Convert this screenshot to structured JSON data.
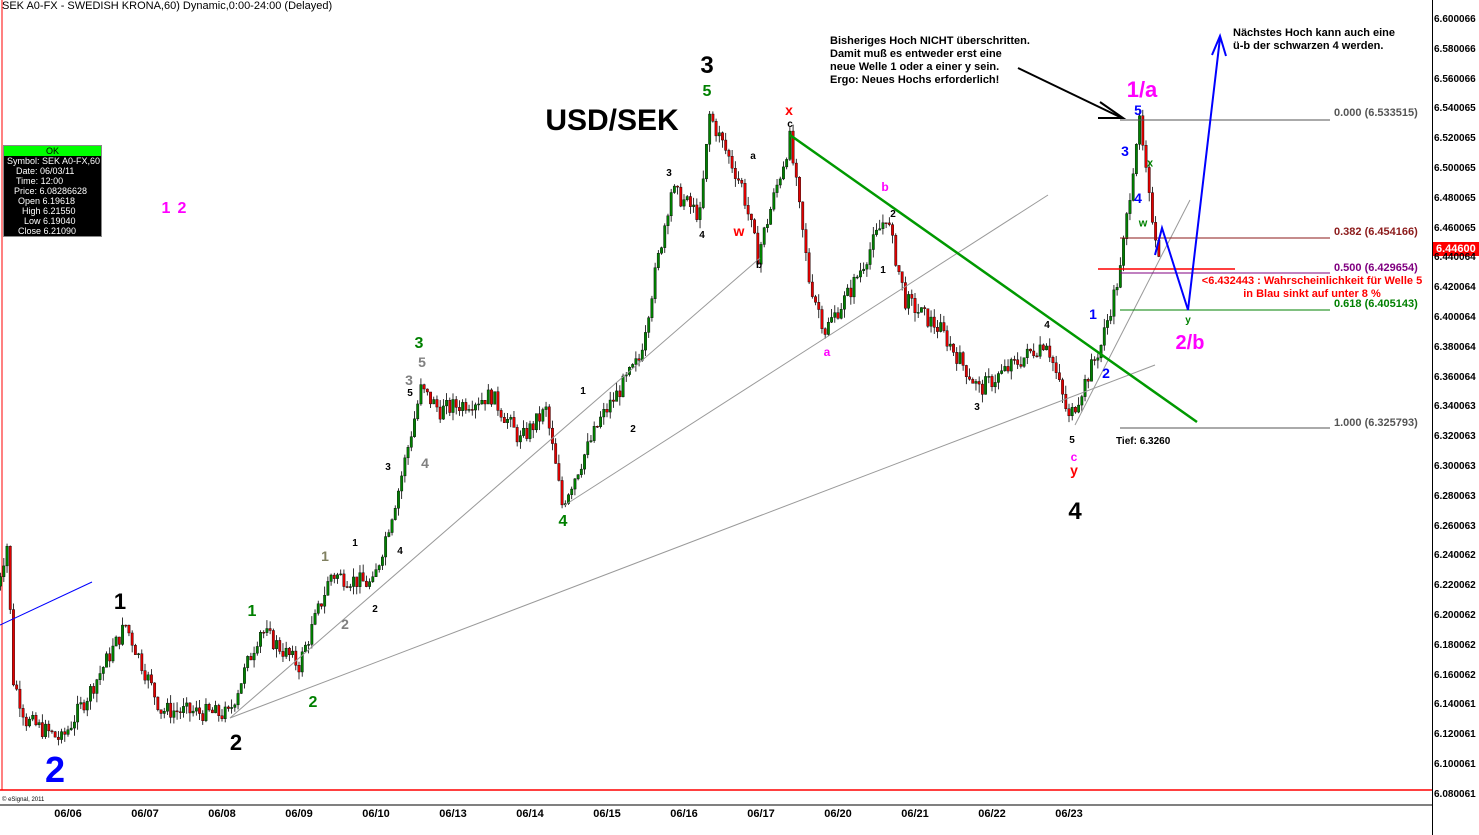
{
  "window_title": "SEK A0-FX - SWEDISH KRONA,60) Dynamic,0:00-24:00 (Delayed)",
  "copyright": "© eSignal, 2011",
  "current_price": "6.44600",
  "info_box": {
    "status": "OK",
    "rows": [
      "Symbol: SEK A0-FX,60",
      "Date: 06/03/11",
      "Time: 12:00",
      "Price: 6.08286628",
      "Open  6.19618",
      "High  6.21550",
      "Low  6.19040",
      "Close  6.21090"
    ]
  },
  "notes": {
    "top_center": [
      "Bisheriges Hoch NICHT überschritten.",
      "Damit muß es entweder erst eine",
      "neue Welle 1 oder a einer y sein.",
      "Ergo: Neues Hochs erforderlich!"
    ],
    "top_right": [
      "Nächstes Hoch kann auch eine",
      "ü-b der schwarzen 4 werden."
    ],
    "red_note": [
      "<6.432443 : Wahrscheinlichkeit für Welle 5",
      "in Blau sinkt auf unter 8 %"
    ]
  },
  "fib_levels": [
    {
      "label": "0.000 (6.533515)",
      "color": "#555555"
    },
    {
      "label": "0.382 (6.454166)",
      "color": "#8b1a1a"
    },
    {
      "label": "0.500 (6.429654)",
      "color": "#800080"
    },
    {
      "label": "0.618 (6.405143)",
      "color": "#008000"
    },
    {
      "label": "1.000 (6.325793)",
      "color": "#555555"
    }
  ],
  "annotations": [
    {
      "text": "2",
      "color": "#0000ff"
    },
    {
      "text": "1",
      "color": "#000000"
    },
    {
      "text": "1",
      "color": "#ff00ff"
    },
    {
      "text": "2",
      "color": "#ff00ff"
    },
    {
      "text": "2",
      "color": "#000000"
    },
    {
      "text": "1",
      "color": "#008000"
    },
    {
      "text": "2",
      "color": "#008000"
    },
    {
      "text": "1",
      "color": "#808060"
    },
    {
      "text": "2",
      "color": "#808080"
    },
    {
      "text": "1",
      "color": "#000000"
    },
    {
      "text": "2",
      "color": "#000000"
    },
    {
      "text": "3",
      "color": "#000000"
    },
    {
      "text": "4",
      "color": "#000000"
    },
    {
      "text": "3",
      "color": "#008000"
    },
    {
      "text": "5",
      "color": "#808080"
    },
    {
      "text": "3",
      "color": "#808080"
    },
    {
      "text": "5",
      "color": "#000000"
    },
    {
      "text": "4",
      "color": "#808080"
    },
    {
      "text": "1",
      "color": "#000000"
    },
    {
      "text": "2",
      "color": "#000000"
    },
    {
      "text": "4",
      "color": "#008000"
    },
    {
      "text": "3",
      "color": "#000000"
    },
    {
      "text": "4",
      "color": "#000000"
    },
    {
      "text": "3",
      "color": "#000000"
    },
    {
      "text": "5",
      "color": "#008000"
    },
    {
      "text": "USD/SEK",
      "color": "#000000"
    },
    {
      "text": "a",
      "color": "#000000"
    },
    {
      "text": "x",
      "color": "#ff0000"
    },
    {
      "text": "c",
      "color": "#000000"
    },
    {
      "text": "w",
      "color": "#ff0000"
    },
    {
      "text": "b",
      "color": "#000000"
    },
    {
      "text": "b",
      "color": "#ff00ff"
    },
    {
      "text": "2",
      "color": "#000000"
    },
    {
      "text": "1",
      "color": "#000000"
    },
    {
      "text": "a",
      "color": "#ff00ff"
    },
    {
      "text": "3",
      "color": "#000000"
    },
    {
      "text": "4",
      "color": "#000000"
    },
    {
      "text": "5",
      "color": "#000000"
    },
    {
      "text": "c",
      "color": "#ff00ff"
    },
    {
      "text": "y",
      "color": "#ff0000"
    },
    {
      "text": "4",
      "color": "#000000"
    },
    {
      "text": "1",
      "color": "#0000ff"
    },
    {
      "text": "2",
      "color": "#0000ff"
    },
    {
      "text": "Tief: 6.3260",
      "color": "#000000"
    },
    {
      "text": "1/a",
      "color": "#ff00ff"
    },
    {
      "text": "5",
      "color": "#0000ff"
    },
    {
      "text": "3",
      "color": "#0000ff"
    },
    {
      "text": "x",
      "color": "#008000"
    },
    {
      "text": "4",
      "color": "#0000ff"
    },
    {
      "text": "w",
      "color": "#008000"
    },
    {
      "text": "y",
      "color": "#008000"
    },
    {
      "text": "2/b",
      "color": "#ff00ff"
    }
  ],
  "chart_data": {
    "type": "candlestick",
    "symbol": "SEK A0-FX,60",
    "interval": "60 min",
    "x_tick_labels": [
      "06/06",
      "06/07",
      "06/08",
      "06/09",
      "06/10",
      "06/13",
      "06/14",
      "06/15",
      "06/16",
      "06/17",
      "06/20",
      "06/21",
      "06/22",
      "06/23"
    ],
    "y_tick_labels": [
      "6.600066",
      "6.580066",
      "6.560066",
      "6.540065",
      "6.520065",
      "6.500065",
      "6.480065",
      "6.460065",
      "6.440064",
      "6.420064",
      "6.400064",
      "6.380064",
      "6.360064",
      "6.340063",
      "6.320063",
      "6.300063",
      "6.280063",
      "6.260063",
      "6.240062",
      "6.220062",
      "6.200062",
      "6.180062",
      "6.160062",
      "6.140061",
      "6.120061",
      "6.100061",
      "6.080061"
    ],
    "ylim": [
      6.080061,
      6.600066
    ],
    "colors": {
      "up": "#008000",
      "down": "#e00000",
      "trend": "#009900",
      "projection": "#0000ff"
    },
    "approx_path": [
      [
        "06/03 01:00",
        6.211
      ],
      [
        "06/03 05:00",
        6.248
      ],
      [
        "06/03 07:00",
        6.157
      ],
      [
        "06/03 11:00",
        6.13
      ],
      [
        "06/03 22:00",
        6.117
      ],
      [
        "06/06 07:00",
        6.15
      ],
      [
        "06/06 18:00",
        6.194
      ],
      [
        "06/07 05:00",
        6.137
      ],
      [
        "06/08 02:00",
        6.134
      ],
      [
        "06/08 12:00",
        6.191
      ],
      [
        "06/09 00:00",
        6.167
      ],
      [
        "06/09 10:00",
        6.228
      ],
      [
        "06/09 23:00",
        6.221
      ],
      [
        "06/10 07:00",
        6.285
      ],
      [
        "06/10 14:00",
        6.352
      ],
      [
        "06/10 20:00",
        6.338
      ],
      [
        "06/13 12:00",
        6.348
      ],
      [
        "06/13 21:00",
        6.318
      ],
      [
        "06/14 05:00",
        6.338
      ],
      [
        "06/14 10:00",
        6.275
      ],
      [
        "06/14 22:00",
        6.332
      ],
      [
        "06/15 10:00",
        6.372
      ],
      [
        "06/15 20:00",
        6.486
      ],
      [
        "06/16 05:00",
        6.469
      ],
      [
        "06/16 08:00",
        6.536
      ],
      [
        "06/16 18:00",
        6.489
      ],
      [
        "06/16 23:00",
        6.442
      ],
      [
        "06/17 09:00",
        6.52
      ],
      [
        "06/17 15:00",
        6.426
      ],
      [
        "06/17 20:00",
        6.392
      ],
      [
        "06/20 04:00",
        6.419
      ],
      [
        "06/20 15:00",
        6.469
      ],
      [
        "06/20 21:00",
        6.412
      ],
      [
        "06/21 08:00",
        6.392
      ],
      [
        "06/21 20:00",
        6.352
      ],
      [
        "06/22 09:00",
        6.372
      ],
      [
        "06/22 17:00",
        6.385
      ],
      [
        "06/23 00:00",
        6.332
      ],
      [
        "06/23 10:00",
        6.382
      ],
      [
        "06/23 16:00",
        6.432
      ],
      [
        "06/23 21:00",
        6.52
      ],
      [
        "06/23 22:00",
        6.53
      ],
      [
        "06/24 01:00",
        6.479
      ],
      [
        "06/24 04:00",
        6.446
      ]
    ]
  }
}
